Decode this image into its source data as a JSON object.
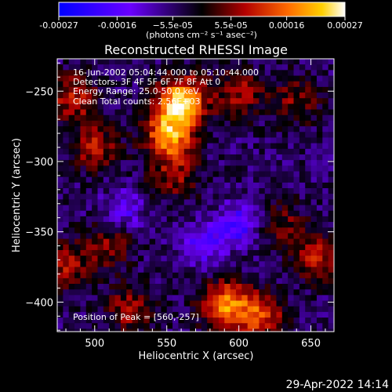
{
  "chart_data": {
    "type": "heatmap",
    "title": "Reconstructed RHESSI Image",
    "xlabel": "Heliocentric X (arcsec)",
    "ylabel": "Heliocentric Y (arcsec)",
    "xlim": [
      474,
      666
    ],
    "ylim": [
      -421,
      -227
    ],
    "x_ticks": [
      500,
      550,
      600,
      650
    ],
    "y_ticks": [
      -250,
      -300,
      -350,
      -400
    ],
    "colorbar": {
      "range": [
        -0.00027,
        0.00027
      ],
      "tick_values": [
        -0.00027,
        -0.00016,
        -5.5e-05,
        5.5e-05,
        0.00016,
        0.00027
      ],
      "tick_labels": [
        "-0.00027",
        "-0.00016",
        "−5.5e-05",
        "5.5e-05",
        "0.00016",
        "0.00027"
      ],
      "unit_label": "(photons cm⁻² s⁻¹ asec⁻²)"
    },
    "annotations": {
      "time": "16-Jun-2002 05:04:44.000 to 05:10:44.000",
      "detectors": "Detectors: 3F 4F 5F 6F 7F 8F Att 0",
      "energy": "Energy Range: 25.0-50.0 keV",
      "clean": "Clean    Total counts: 2.56E+03",
      "peak": "Position of Peak = [560,-257]"
    },
    "peak_position": [
      560,
      -257
    ],
    "hotspots": [
      {
        "x": 560,
        "y": -257,
        "value": 0.00027
      },
      {
        "x": 552,
        "y": -281,
        "value": 0.00024
      },
      {
        "x": 485,
        "y": -255,
        "value": 0.00014
      },
      {
        "x": 500,
        "y": -290,
        "value": 0.00013
      },
      {
        "x": 600,
        "y": -252,
        "value": 0.00012
      },
      {
        "x": 640,
        "y": -257,
        "value": 0.0001
      },
      {
        "x": 555,
        "y": -310,
        "value": 0.00011
      },
      {
        "x": 510,
        "y": -360,
        "value": 0.0001
      },
      {
        "x": 590,
        "y": -402,
        "value": 0.00022
      },
      {
        "x": 615,
        "y": -410,
        "value": 0.00017
      },
      {
        "x": 525,
        "y": -405,
        "value": 0.00012
      },
      {
        "x": 480,
        "y": -375,
        "value": 0.00012
      },
      {
        "x": 655,
        "y": -368,
        "value": 0.00013
      },
      {
        "x": 630,
        "y": -345,
        "value": 9e-05
      }
    ],
    "coldspots": [
      {
        "x": 600,
        "y": -345,
        "value": -0.00015
      },
      {
        "x": 575,
        "y": -360,
        "value": -0.00012
      },
      {
        "x": 520,
        "y": -335,
        "value": -0.0001
      }
    ],
    "background_level": -5e-05
  },
  "footer": {
    "timestamp": "29-Apr-2022 14:14"
  }
}
